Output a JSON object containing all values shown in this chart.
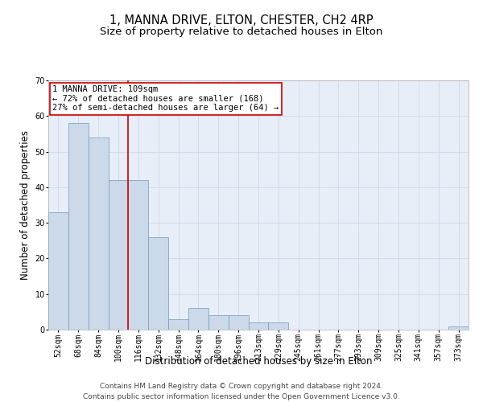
{
  "title": "1, MANNA DRIVE, ELTON, CHESTER, CH2 4RP",
  "subtitle": "Size of property relative to detached houses in Elton",
  "xlabel": "Distribution of detached houses by size in Elton",
  "ylabel": "Number of detached properties",
  "categories": [
    "52sqm",
    "68sqm",
    "84sqm",
    "100sqm",
    "116sqm",
    "132sqm",
    "148sqm",
    "164sqm",
    "180sqm",
    "196sqm",
    "213sqm",
    "229sqm",
    "245sqm",
    "261sqm",
    "277sqm",
    "293sqm",
    "309sqm",
    "325sqm",
    "341sqm",
    "357sqm",
    "373sqm"
  ],
  "values": [
    33,
    58,
    54,
    42,
    42,
    26,
    3,
    6,
    4,
    4,
    2,
    2,
    0,
    0,
    0,
    0,
    0,
    0,
    0,
    0,
    1
  ],
  "bar_color": "#ccd9ea",
  "bar_edge_color": "#7099bb",
  "vline_x": 3.5,
  "vline_color": "#cc0000",
  "annotation_text": "1 MANNA DRIVE: 109sqm\n← 72% of detached houses are smaller (168)\n27% of semi-detached houses are larger (64) →",
  "annotation_box_color": "#ffffff",
  "annotation_box_edge": "#cc0000",
  "ylim": [
    0,
    70
  ],
  "yticks": [
    0,
    10,
    20,
    30,
    40,
    50,
    60,
    70
  ],
  "footer": "Contains HM Land Registry data © Crown copyright and database right 2024.\nContains public sector information licensed under the Open Government Licence v3.0.",
  "title_fontsize": 10.5,
  "subtitle_fontsize": 9.5,
  "axis_label_fontsize": 8.5,
  "tick_fontsize": 7,
  "footer_fontsize": 6.5,
  "grid_color": "#d0d8e8",
  "bg_color": "#e8eef8"
}
